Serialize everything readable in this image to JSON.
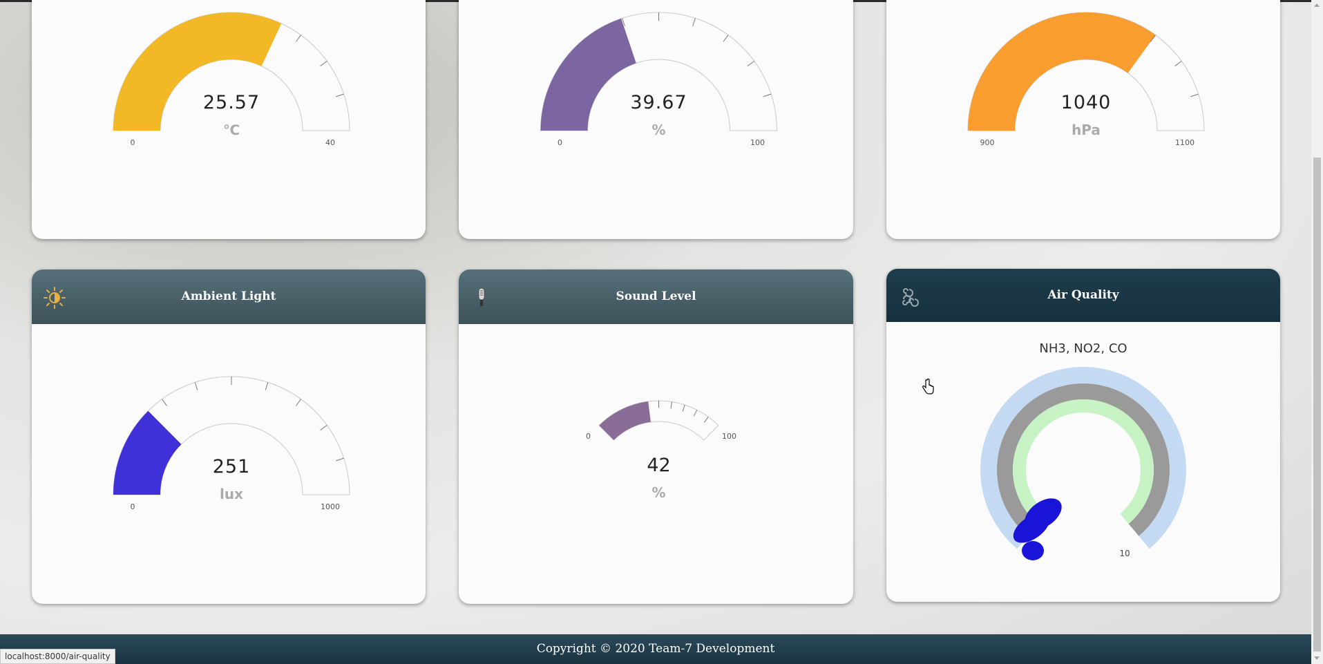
{
  "gauges": {
    "temperature": {
      "value": "25.57",
      "unit": "℃",
      "min": "0",
      "max": "40",
      "level": 0.639,
      "color": "#f2b826"
    },
    "humidity": {
      "value": "39.67",
      "unit": "%",
      "min": "0",
      "max": "100",
      "level": 0.397,
      "color": "#7c66a2"
    },
    "pressure": {
      "value": "1040",
      "unit": "hPa",
      "min": "900",
      "max": "1100",
      "level": 0.7,
      "color": "#f99d2e"
    },
    "light": {
      "title": "Ambient Light",
      "icon": "sun-moon-icon",
      "value": "251",
      "unit": "lux",
      "min": "0",
      "max": "1000",
      "level": 0.251,
      "color": "#4030d8"
    },
    "sound": {
      "title": "Sound Level",
      "icon": "microphone-icon",
      "value": "42",
      "unit": "%",
      "min": "0",
      "max": "100",
      "level": 0.42,
      "color": "#8a6d96"
    }
  },
  "air_quality": {
    "title": "Air Quality",
    "icon": "air-swirl-icon",
    "subtitle": "NH3, NO2, CO",
    "max_label": "10",
    "ring_colors": [
      "#c4daf3",
      "#9a9a9a",
      "#c6f2c4"
    ],
    "pointer_color": "#1a14d8"
  },
  "footer": {
    "text": "Copyright © 2020 Team-7 Development"
  },
  "status_bar": {
    "url": "localhost:8000/air-quality"
  }
}
